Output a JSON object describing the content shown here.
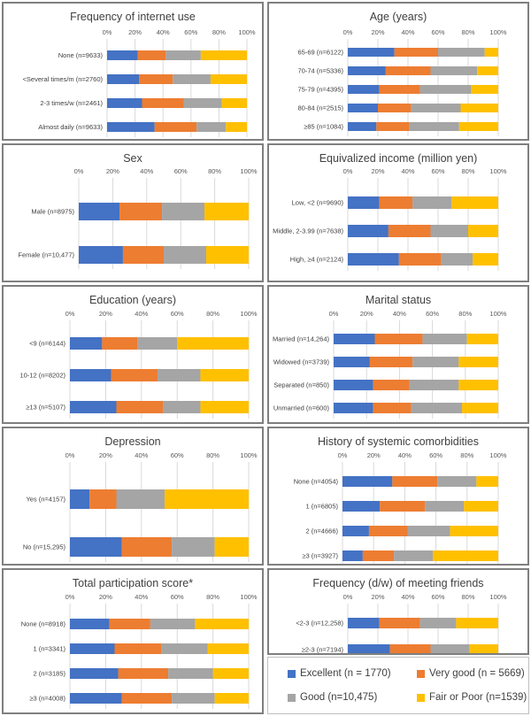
{
  "colors": {
    "excellent": "#4472c4",
    "very_good": "#ed7d31",
    "good": "#a5a5a5",
    "fair_poor": "#ffc000"
  },
  "legend": [
    {
      "key": "excellent",
      "label": "Excellent (n = 1770)"
    },
    {
      "key": "very_good",
      "label": "Very good (n = 5669)"
    },
    {
      "key": "good",
      "label": "Good (n=10,475)"
    },
    {
      "key": "fair_poor",
      "label": "Fair or Poor (n=1539)"
    }
  ],
  "chart_data": [
    {
      "type": "bar",
      "orientation": "horizontal",
      "stacked": "100%",
      "title": "Frequency of internet use",
      "xlim": [
        0,
        100
      ],
      "xticks": [
        "0%",
        "20%",
        "40%",
        "60%",
        "80%",
        "100%"
      ],
      "categories": [
        "None (n=9633)",
        "<Several times/m (n=2760)",
        "2-3 times/w (n=2461)",
        "Almost daily (n=9633)"
      ],
      "series": [
        {
          "name": "Excellent",
          "values": [
            22,
            23,
            25,
            34
          ]
        },
        {
          "name": "Very good",
          "values": [
            20,
            24,
            30,
            30
          ]
        },
        {
          "name": "Good",
          "values": [
            25,
            27,
            27,
            21
          ]
        },
        {
          "name": "Fair or Poor",
          "values": [
            33,
            26,
            18,
            15
          ]
        }
      ]
    },
    {
      "type": "bar",
      "orientation": "horizontal",
      "stacked": "100%",
      "title": "Age (years)",
      "xlim": [
        0,
        100
      ],
      "xticks": [
        "0%",
        "20%",
        "40%",
        "60%",
        "80%",
        "100%"
      ],
      "categories": [
        "65-69 (n=6122)",
        "70-74 (n=5336)",
        "75-79 (n=4395)",
        "80-84 (n=2515)",
        "≥85 (n=1084)"
      ],
      "series": [
        {
          "name": "Excellent",
          "values": [
            31,
            25,
            21,
            20,
            19
          ]
        },
        {
          "name": "Very good",
          "values": [
            29,
            30,
            27,
            22,
            22
          ]
        },
        {
          "name": "Good",
          "values": [
            31,
            31,
            34,
            33,
            33
          ]
        },
        {
          "name": "Fair or Poor",
          "values": [
            9,
            14,
            18,
            25,
            26
          ]
        }
      ]
    },
    {
      "type": "bar",
      "orientation": "horizontal",
      "stacked": "100%",
      "title": "Sex",
      "xlim": [
        0,
        100
      ],
      "xticks": [
        "0%",
        "20%",
        "40%",
        "60%",
        "80%",
        "100%"
      ],
      "categories": [
        "Male (n=8975)",
        "Female (n=10,477)"
      ],
      "series": [
        {
          "name": "Excellent",
          "values": [
            24,
            26
          ]
        },
        {
          "name": "Very good",
          "values": [
            25,
            24
          ]
        },
        {
          "name": "Good",
          "values": [
            25,
            25
          ]
        },
        {
          "name": "Fair or Poor",
          "values": [
            26,
            25
          ]
        }
      ]
    },
    {
      "type": "bar",
      "orientation": "horizontal",
      "stacked": "100%",
      "title": "Equivalized income (million yen)",
      "xlim": [
        0,
        100
      ],
      "xticks": [
        "0%",
        "20%",
        "40%",
        "60%",
        "80%",
        "100%"
      ],
      "categories": [
        "Low, <2 (n=9690)",
        "Middle, 2-3.99 (n=7638)",
        "High, ≥4 (n=2124)"
      ],
      "series": [
        {
          "name": "Excellent",
          "values": [
            21,
            27,
            34
          ]
        },
        {
          "name": "Very good",
          "values": [
            22,
            28,
            28
          ]
        },
        {
          "name": "Good",
          "values": [
            26,
            25,
            21
          ]
        },
        {
          "name": "Fair or Poor",
          "values": [
            31,
            20,
            17
          ]
        }
      ]
    },
    {
      "type": "bar",
      "orientation": "horizontal",
      "stacked": "100%",
      "title": "Education (years)",
      "xlim": [
        0,
        100
      ],
      "xticks": [
        "0%",
        "20%",
        "40%",
        "60%",
        "80%",
        "100%"
      ],
      "categories": [
        "<9 (n=6144)",
        "10-12 (n=8202)",
        "≥13 (n=5107)"
      ],
      "series": [
        {
          "name": "Excellent",
          "values": [
            18,
            23,
            26
          ]
        },
        {
          "name": "Very good",
          "values": [
            20,
            26,
            26
          ]
        },
        {
          "name": "Good",
          "values": [
            22,
            24,
            21
          ]
        },
        {
          "name": "Fair or Poor",
          "values": [
            40,
            27,
            27
          ]
        }
      ]
    },
    {
      "type": "bar",
      "orientation": "horizontal",
      "stacked": "100%",
      "title": "Marital status",
      "xlim": [
        0,
        100
      ],
      "xticks": [
        "0%",
        "20%",
        "40%",
        "60%",
        "80%",
        "100%"
      ],
      "categories": [
        "Married (n=14,264)",
        "Widowed (n=3739)",
        "Separated (n=850)",
        "Unmarried (n=600)"
      ],
      "series": [
        {
          "name": "Excellent",
          "values": [
            25,
            22,
            24,
            24
          ]
        },
        {
          "name": "Very good",
          "values": [
            29,
            26,
            22,
            23
          ]
        },
        {
          "name": "Good",
          "values": [
            27,
            28,
            30,
            31
          ]
        },
        {
          "name": "Fair or Poor",
          "values": [
            19,
            24,
            24,
            22
          ]
        }
      ]
    },
    {
      "type": "bar",
      "orientation": "horizontal",
      "stacked": "100%",
      "title": "Depression",
      "xlim": [
        0,
        100
      ],
      "xticks": [
        "0%",
        "20%",
        "40%",
        "60%",
        "80%",
        "100%"
      ],
      "categories": [
        "Yes (n=4157)",
        "No (n=15,295)"
      ],
      "series": [
        {
          "name": "Excellent",
          "values": [
            11,
            29
          ]
        },
        {
          "name": "Very good",
          "values": [
            15,
            28
          ]
        },
        {
          "name": "Good",
          "values": [
            27,
            24
          ]
        },
        {
          "name": "Fair or Poor",
          "values": [
            47,
            19
          ]
        }
      ]
    },
    {
      "type": "bar",
      "orientation": "horizontal",
      "stacked": "100%",
      "title": "History of systemic comorbidities",
      "xlim": [
        0,
        100
      ],
      "xticks": [
        "0%",
        "20%",
        "40%",
        "60%",
        "80%",
        "100%"
      ],
      "categories": [
        "None (n=4054)",
        "1 (n=6805)",
        "2 (n=4666)",
        "≥3 (n=3927)"
      ],
      "series": [
        {
          "name": "Excellent",
          "values": [
            32,
            24,
            17,
            13
          ]
        },
        {
          "name": "Very good",
          "values": [
            29,
            29,
            25,
            20
          ]
        },
        {
          "name": "Good",
          "values": [
            25,
            25,
            27,
            25
          ]
        },
        {
          "name": "Fair or Poor",
          "values": [
            14,
            22,
            31,
            42
          ]
        }
      ]
    },
    {
      "type": "bar",
      "orientation": "horizontal",
      "stacked": "100%",
      "title": "Total participation score*",
      "xlim": [
        0,
        100
      ],
      "xticks": [
        "0%",
        "20%",
        "40%",
        "60%",
        "80%",
        "100%"
      ],
      "categories": [
        "None (n=8918)",
        "1 (n=3341)",
        "2 (n=3185)",
        "≥3 (n=4008)"
      ],
      "series": [
        {
          "name": "Excellent",
          "values": [
            22,
            25,
            27,
            29
          ]
        },
        {
          "name": "Very good",
          "values": [
            23,
            26,
            28,
            28
          ]
        },
        {
          "name": "Good",
          "values": [
            25,
            26,
            25,
            24
          ]
        },
        {
          "name": "Fair or Poor",
          "values": [
            30,
            23,
            20,
            19
          ]
        }
      ]
    },
    {
      "type": "bar",
      "orientation": "horizontal",
      "stacked": "100%",
      "title": "Frequency (d/w) of meeting friends",
      "xlim": [
        0,
        100
      ],
      "xticks": [
        "0%",
        "20%",
        "40%",
        "60%",
        "80%",
        "100%"
      ],
      "categories": [
        "<2-3 (n=12,258)",
        "≥2-3 (n=7194)"
      ],
      "series": [
        {
          "name": "Excellent",
          "values": [
            21,
            28
          ]
        },
        {
          "name": "Very good",
          "values": [
            27,
            27
          ]
        },
        {
          "name": "Good",
          "values": [
            24,
            26
          ]
        },
        {
          "name": "Fair or Poor",
          "values": [
            28,
            19
          ]
        }
      ]
    }
  ]
}
